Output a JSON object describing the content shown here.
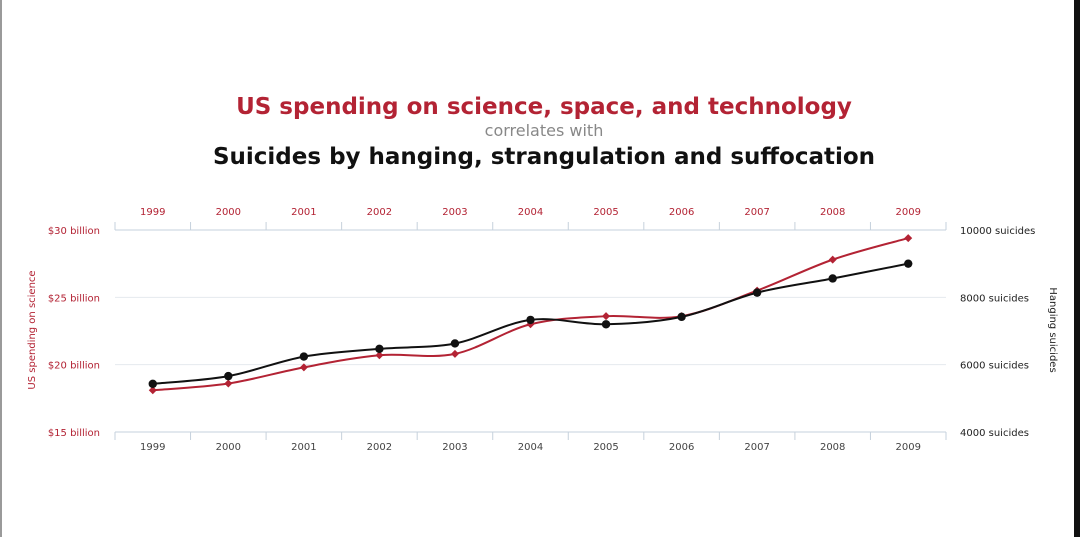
{
  "title": "US spending on science, space, and technology",
  "subtitle": "correlates with",
  "title2": "Suicides by hanging, strangulation and suffocation",
  "chart_data": {
    "type": "line",
    "x": [
      "1999",
      "2000",
      "2001",
      "2002",
      "2003",
      "2004",
      "2005",
      "2006",
      "2007",
      "2008",
      "2009"
    ],
    "x_bottom_ticks_note": "",
    "y_left": {
      "label": "US spending on science",
      "range": [
        15,
        30
      ],
      "ticks": [
        {
          "value": 30,
          "label": "$30 billion"
        },
        {
          "value": 25,
          "label": "$25 billion"
        },
        {
          "value": 20,
          "label": "$20 billion"
        },
        {
          "value": 15,
          "label": "$15 billion"
        }
      ]
    },
    "y_right": {
      "label": "Hanging suicides",
      "range": [
        4000,
        10000
      ],
      "ticks": [
        {
          "value": 10000,
          "label": "10000 suicides"
        },
        {
          "value": 8000,
          "label": "8000 suicides"
        },
        {
          "value": 6000,
          "label": "6000 suicides"
        },
        {
          "value": 4000,
          "label": "4000 suicides"
        }
      ]
    },
    "series": [
      {
        "axis": "left",
        "color": "#b32334",
        "marker": "diamond",
        "values": [
          18.1,
          18.6,
          19.8,
          20.7,
          20.8,
          23.0,
          23.6,
          23.6,
          25.5,
          27.8,
          29.4
        ]
      },
      {
        "axis": "right",
        "color": "#111111",
        "marker": "circle",
        "values": [
          5430,
          5660,
          6240,
          6470,
          6630,
          7330,
          7200,
          7420,
          8140,
          8560,
          9000
        ]
      }
    ],
    "grid": "horizontal",
    "legend": "none"
  }
}
